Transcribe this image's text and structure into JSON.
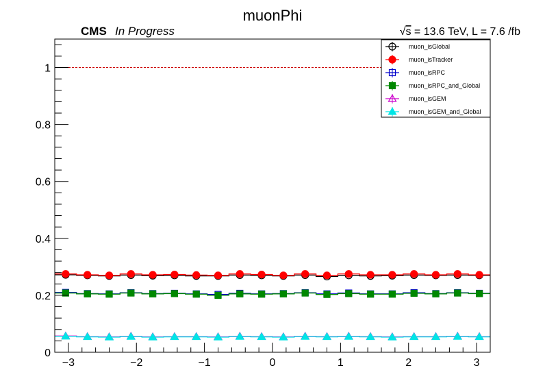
{
  "chart_data": {
    "type": "scatter",
    "title": "muonPhi",
    "labels": {
      "experiment": "CMS",
      "status": "In Progress",
      "lumi_sqrt_symbol": "√",
      "lumi_s": "s",
      "lumi_rest": " = 13.6 TeV, L = 7.6 /fb"
    },
    "xlabel": "",
    "ylabel": "",
    "xlim": [
      -3.2,
      3.2
    ],
    "ylim": [
      0,
      1.1
    ],
    "xticks": [
      -3,
      -2,
      -1,
      0,
      1,
      2,
      3
    ],
    "xtick_labels": [
      "−3",
      "−2",
      "−1",
      "0",
      "1",
      "2",
      "3"
    ],
    "yticks": [
      0,
      0.2,
      0.4,
      0.6,
      0.8,
      1
    ],
    "ytick_labels": [
      "0",
      "0.2",
      "0.4",
      "0.6",
      "0.8",
      "1"
    ],
    "grid": false,
    "legend_position": "top-right",
    "reference_line": {
      "y": 1.0,
      "color": "#cc0000",
      "style": "dashed"
    },
    "bins": {
      "min": -3.2,
      "max": 3.2,
      "count": 20
    },
    "x": [
      -3.04,
      -2.72,
      -2.4,
      -2.08,
      -1.76,
      -1.44,
      -1.12,
      -0.8,
      -0.48,
      -0.16,
      0.16,
      0.48,
      0.8,
      1.12,
      1.44,
      1.76,
      2.08,
      2.4,
      2.72,
      3.04
    ],
    "series": [
      {
        "name": "muon_isGlobal",
        "color": "#000000",
        "marker": "open-circle",
        "values": [
          0.272,
          0.27,
          0.268,
          0.271,
          0.269,
          0.27,
          0.268,
          0.268,
          0.271,
          0.27,
          0.268,
          0.271,
          0.266,
          0.27,
          0.268,
          0.269,
          0.271,
          0.27,
          0.271,
          0.27
        ]
      },
      {
        "name": "muon_isTracker",
        "color": "#ff0000",
        "marker": "filled-circle",
        "values": [
          0.275,
          0.272,
          0.27,
          0.275,
          0.272,
          0.273,
          0.271,
          0.27,
          0.275,
          0.273,
          0.27,
          0.275,
          0.27,
          0.275,
          0.272,
          0.272,
          0.275,
          0.272,
          0.275,
          0.272
        ]
      },
      {
        "name": "muon_isRPC",
        "color": "#0000cc",
        "marker": "open-square",
        "values": [
          0.21,
          0.206,
          0.205,
          0.209,
          0.206,
          0.207,
          0.205,
          0.203,
          0.207,
          0.205,
          0.206,
          0.209,
          0.205,
          0.208,
          0.205,
          0.205,
          0.209,
          0.206,
          0.209,
          0.207
        ]
      },
      {
        "name": "muon_isRPC_and_Global",
        "color": "#008800",
        "marker": "filled-square",
        "values": [
          0.208,
          0.205,
          0.204,
          0.208,
          0.205,
          0.206,
          0.204,
          0.2,
          0.205,
          0.204,
          0.205,
          0.208,
          0.203,
          0.206,
          0.204,
          0.204,
          0.207,
          0.205,
          0.208,
          0.206
        ]
      },
      {
        "name": "muon_isGEM",
        "color": "#cc00cc",
        "marker": "open-triangle",
        "values": [
          0.057,
          0.055,
          0.054,
          0.056,
          0.054,
          0.055,
          0.055,
          0.054,
          0.056,
          0.055,
          0.054,
          0.056,
          0.055,
          0.056,
          0.055,
          0.054,
          0.055,
          0.055,
          0.056,
          0.055
        ]
      },
      {
        "name": "muon_isGEM_and_Global",
        "color": "#00e5e5",
        "marker": "filled-triangle",
        "values": [
          0.056,
          0.054,
          0.053,
          0.055,
          0.053,
          0.054,
          0.054,
          0.053,
          0.055,
          0.054,
          0.053,
          0.055,
          0.054,
          0.055,
          0.054,
          0.053,
          0.054,
          0.054,
          0.055,
          0.054
        ]
      }
    ]
  }
}
